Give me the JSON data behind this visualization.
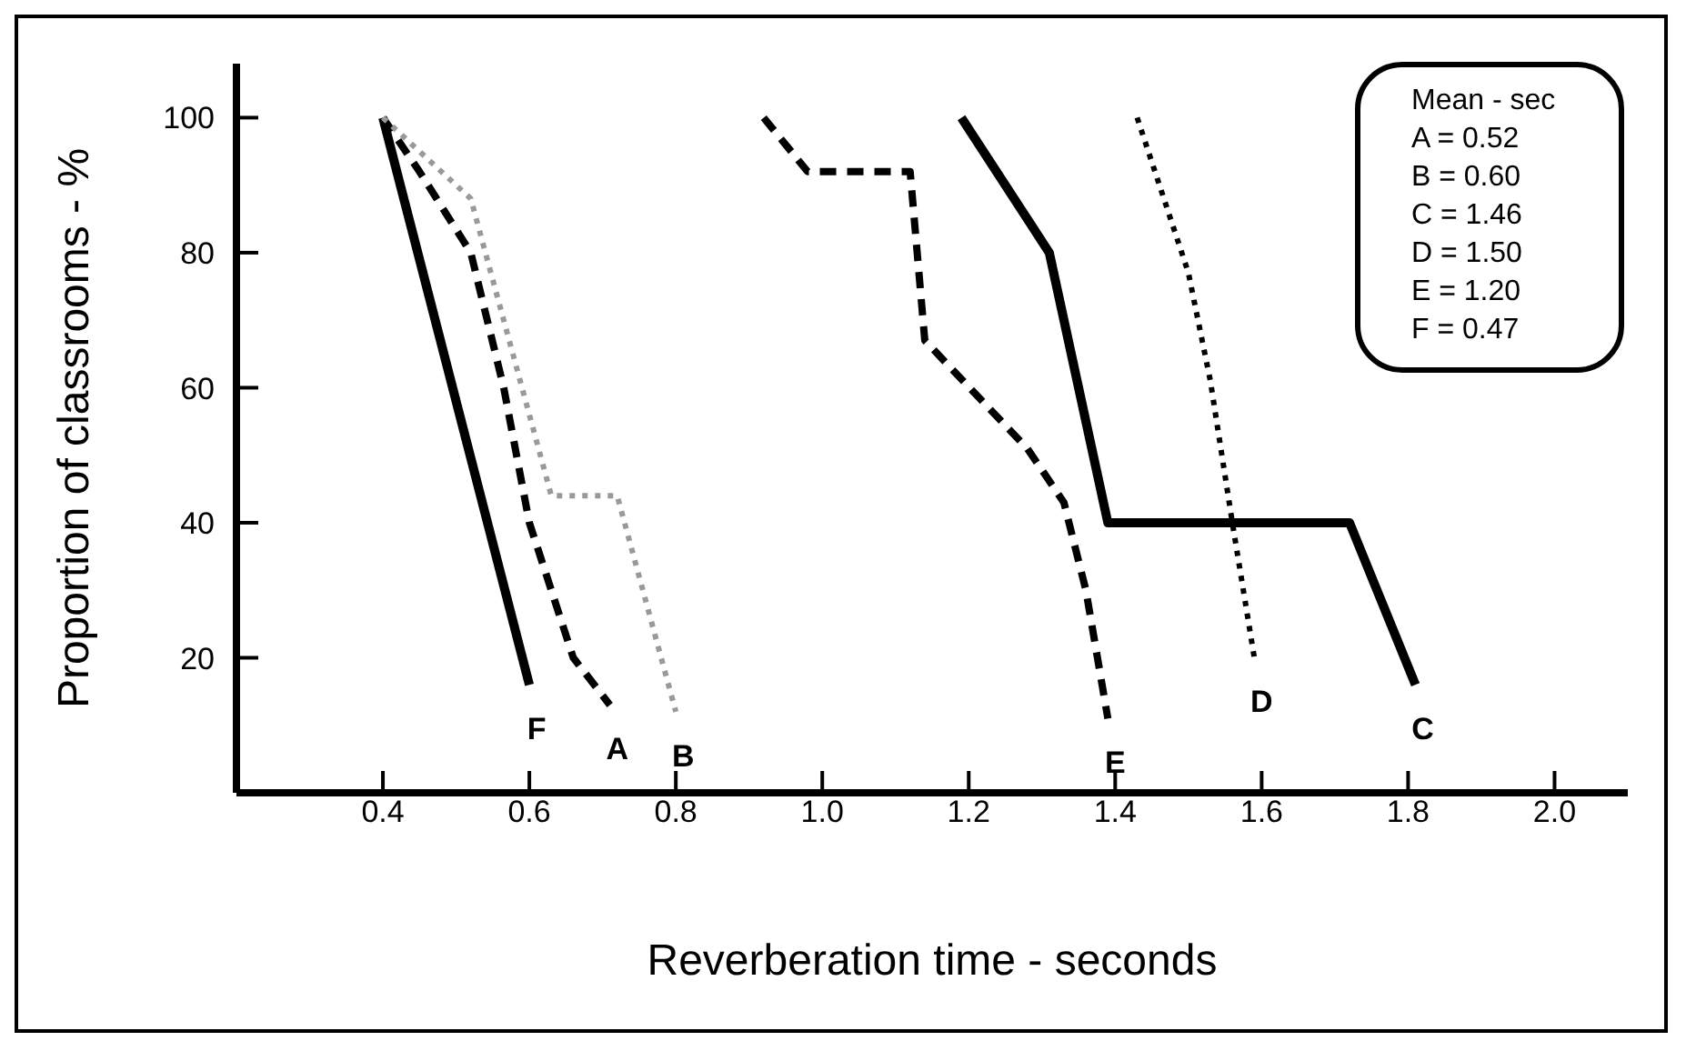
{
  "chart_data": {
    "type": "line",
    "xlabel": "Reverberation time - seconds",
    "ylabel": "Proportion of classrooms - %",
    "xlim": [
      0.2,
      2.1
    ],
    "xticks": [
      0.4,
      0.6,
      0.8,
      {
        "value": 1,
        "label": "1.0"
      },
      1.2,
      1.4,
      1.6,
      1.8,
      {
        "value": 2,
        "label": "2.0"
      }
    ],
    "ylim": [
      0,
      108
    ],
    "yticks": [
      20,
      40,
      60,
      80,
      100
    ],
    "grid": false,
    "legend": false,
    "marker": "none",
    "annotations": [
      "Mean - sec",
      "A = 0.52",
      "B = 0.60",
      "C = 1.46",
      "D = 1.50",
      "E = 1.20",
      "F = 0.47"
    ],
    "series": [
      {
        "name": "F",
        "color": "#000000",
        "line_style": "solid",
        "x": [
          0.4,
          0.6
        ],
        "values": [
          100,
          16
        ]
      },
      {
        "name": "A",
        "color": "#000000",
        "line_style": "dashed",
        "x": [
          0.4,
          0.45,
          0.52,
          0.565,
          0.6,
          0.66,
          0.71
        ],
        "values": [
          100,
          92,
          80,
          60,
          40,
          20,
          13
        ]
      },
      {
        "name": "B",
        "color": "#999999",
        "line_style": "dotted",
        "x": [
          0.4,
          0.52,
          0.63,
          0.72,
          0.8
        ],
        "values": [
          100,
          88,
          44,
          44,
          12
        ]
      },
      {
        "name": "E",
        "color": "#000000",
        "line_style": "dashed",
        "x": [
          0.92,
          0.98,
          1.12,
          1.14,
          1.28,
          1.33,
          1.36,
          1.39
        ],
        "values": [
          100,
          92,
          92,
          67,
          51,
          43,
          30,
          11
        ]
      },
      {
        "name": "D",
        "color": "#000000",
        "line_style": "dotted",
        "x": [
          1.43,
          1.5,
          1.53,
          1.56,
          1.59
        ],
        "values": [
          100,
          77,
          61,
          40,
          20
        ]
      },
      {
        "name": "C",
        "color": "#000000",
        "line_style": "solid",
        "x": [
          1.19,
          1.31,
          1.39,
          1.72,
          1.81
        ],
        "values": [
          100,
          80,
          40,
          40,
          16
        ]
      }
    ]
  }
}
